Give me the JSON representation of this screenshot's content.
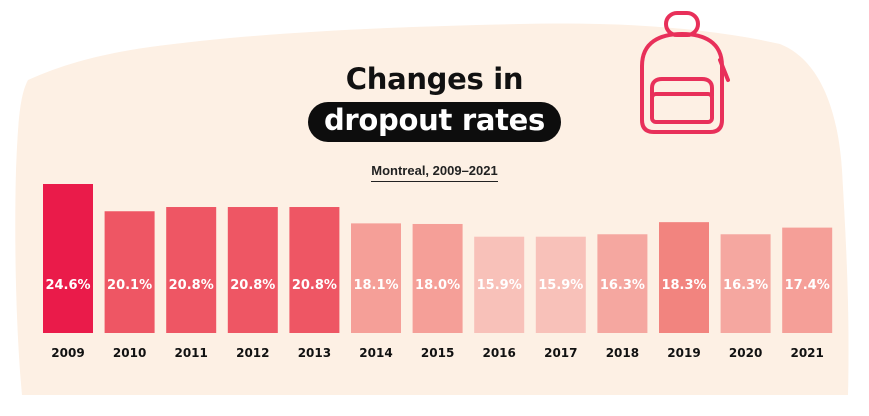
{
  "title_line1": "Changes in",
  "title_line2": "dropout rates",
  "subtitle": "Montreal, 2009–2021",
  "icon": "backpack-icon",
  "colors": {
    "background_blob": "#fdf0e4",
    "text": "#111111",
    "icon_stroke": "#e8305a"
  },
  "chart_data": {
    "type": "bar",
    "title": "Changes in dropout rates",
    "subtitle": "Montreal, 2009–2021",
    "categories": [
      "2009",
      "2010",
      "2011",
      "2012",
      "2013",
      "2014",
      "2015",
      "2016",
      "2017",
      "2018",
      "2019",
      "2020",
      "2021"
    ],
    "values": [
      24.6,
      20.1,
      20.8,
      20.8,
      20.8,
      18.1,
      18.0,
      15.9,
      15.9,
      16.3,
      18.3,
      16.3,
      17.4
    ],
    "value_labels": [
      "24.6%",
      "20.1%",
      "20.8%",
      "20.8%",
      "20.8%",
      "18.1%",
      "18.0%",
      "15.9%",
      "15.9%",
      "16.3%",
      "18.3%",
      "16.3%",
      "17.4%"
    ],
    "bar_colors": [
      "#ea1b4a",
      "#ee5664",
      "#ee5664",
      "#ee5664",
      "#ee5664",
      "#f59f98",
      "#f59f98",
      "#f8c1b9",
      "#f8c1b9",
      "#f5a7a0",
      "#f2847f",
      "#f5a7a0",
      "#f59f98"
    ],
    "ylim": [
      0,
      25
    ],
    "xlabel": "",
    "ylabel": "",
    "grid": false,
    "legend": "none"
  }
}
